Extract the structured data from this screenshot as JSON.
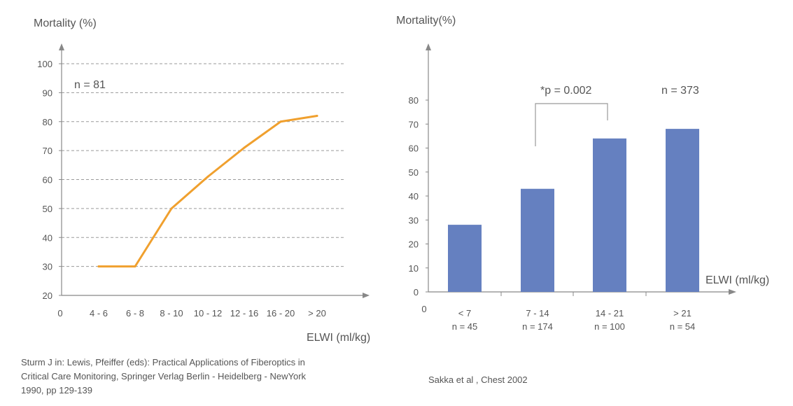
{
  "chart_data": [
    {
      "type": "line",
      "ylabel": "Mortality (%)",
      "xlabel": "ELWI (ml/kg)",
      "annotation": "n = 81",
      "origin_label": "0",
      "yticks": [
        "20",
        "30",
        "40",
        "50",
        "60",
        "70",
        "80",
        "90",
        "100"
      ],
      "ylim": [
        20,
        100
      ],
      "categories": [
        "4 - 6",
        "6 - 8",
        "8 - 10",
        "10 - 12",
        "12 - 16",
        "16 - 20",
        "> 20"
      ],
      "values": [
        30,
        30,
        50,
        61,
        71,
        80,
        82
      ],
      "grid": true,
      "line_color": "#f0a02e"
    },
    {
      "type": "bar",
      "ylabel": "Mortality(%)",
      "xlabel": "ELWI (ml/kg)",
      "annotation": "n = 373",
      "significance": "*p = 0.002",
      "origin_label": "0",
      "yticks": [
        "0",
        "10",
        "20",
        "30",
        "40",
        "50",
        "60",
        "70",
        "80"
      ],
      "ylim": [
        0,
        80
      ],
      "categories": [
        "< 7",
        "7 - 14",
        "14 - 21",
        "> 21"
      ],
      "counts": [
        "n = 45",
        "n = 174",
        "n = 100",
        "n = 54"
      ],
      "values": [
        28,
        43,
        64,
        68
      ],
      "bar_color": "#6580c0"
    }
  ],
  "references": {
    "left": [
      "Sturm J in: Lewis, Pfeiffer (eds): Practical Applications of Fiberoptics in",
      "Critical Care Monitoring, Springer Verlag Berlin - Heidelberg - NewYork",
      "1990, pp 129-139"
    ],
    "right": "Sakka et al , Chest 2002"
  }
}
